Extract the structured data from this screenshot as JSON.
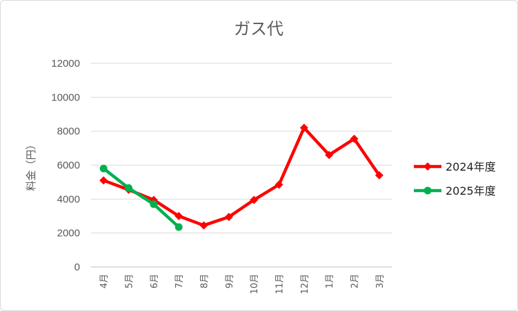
{
  "chart_data": {
    "type": "line",
    "title": "ガス代",
    "xlabel": "",
    "ylabel": "料金（円）",
    "categories": [
      "4月",
      "5月",
      "6月",
      "7月",
      "8月",
      "9月",
      "10月",
      "11月",
      "12月",
      "1月",
      "2月",
      "3月"
    ],
    "ylim": [
      0,
      12000
    ],
    "yticks": [
      0,
      2000,
      4000,
      6000,
      8000,
      10000,
      12000
    ],
    "grid": true,
    "legend_position": "right",
    "series": [
      {
        "name": "2024年度",
        "color": "#ff0000",
        "marker": "diamond",
        "values": [
          5100,
          4550,
          3950,
          3000,
          2450,
          2950,
          3950,
          4850,
          8200,
          6600,
          7550,
          5400
        ]
      },
      {
        "name": "2025年度",
        "color": "#00b050",
        "marker": "circle",
        "values": [
          5800,
          4650,
          3700,
          2350,
          null,
          null,
          null,
          null,
          null,
          null,
          null,
          null
        ]
      }
    ]
  }
}
